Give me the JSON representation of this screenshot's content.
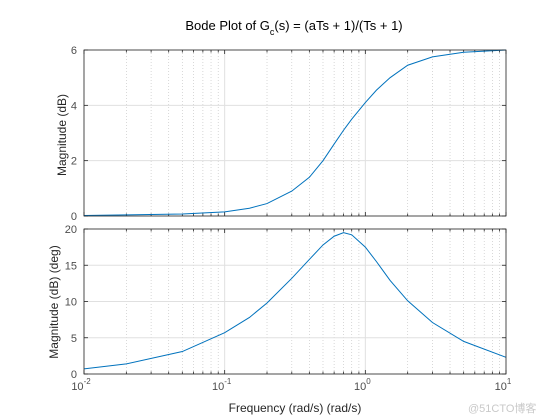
{
  "chart_data": [
    {
      "type": "line",
      "title_main": "Bode Plot of G",
      "title_sub": "c",
      "title_rest": "(s) = (aTs + 1)/(Ts + 1)",
      "xlabel": "",
      "ylabel": "Magnitude (dB)",
      "xscale": "log",
      "xlim": [
        0.01,
        10
      ],
      "ylim": [
        0,
        6
      ],
      "yticks": [
        0,
        2,
        4,
        6
      ],
      "grid": true,
      "minor_grid": true,
      "color": "#0072bd",
      "series": [
        {
          "x": [
            0.01,
            0.02,
            0.05,
            0.1,
            0.15,
            0.2,
            0.3,
            0.4,
            0.5,
            0.6,
            0.7,
            0.8,
            1.0,
            1.2,
            1.5,
            2.0,
            3.0,
            5.0,
            10.0
          ],
          "values": [
            0.02,
            0.04,
            0.07,
            0.15,
            0.28,
            0.45,
            0.9,
            1.4,
            2.0,
            2.6,
            3.1,
            3.5,
            4.1,
            4.55,
            5.0,
            5.45,
            5.75,
            5.92,
            6.0
          ]
        }
      ]
    },
    {
      "type": "line",
      "xlabel": "Frequency (rad/s)  (rad/s)",
      "ylabel": "Magnitude (dB) (deg)",
      "xscale": "log",
      "xlim": [
        0.01,
        10
      ],
      "ylim": [
        0,
        20
      ],
      "yticks": [
        0,
        5,
        10,
        15,
        20
      ],
      "xtick_labels": [
        {
          "base": "10",
          "exp": "-2"
        },
        {
          "base": "10",
          "exp": "-1"
        },
        {
          "base": "10",
          "exp": "0"
        },
        {
          "base": "10",
          "exp": "1"
        }
      ],
      "grid": true,
      "minor_grid": true,
      "color": "#0072bd",
      "series": [
        {
          "x": [
            0.01,
            0.02,
            0.05,
            0.1,
            0.15,
            0.2,
            0.3,
            0.4,
            0.5,
            0.6,
            0.7,
            0.8,
            1.0,
            1.2,
            1.5,
            2.0,
            3.0,
            5.0,
            10.0
          ],
          "values": [
            0.7,
            1.4,
            3.1,
            5.7,
            7.8,
            9.8,
            13.2,
            15.8,
            17.8,
            19.0,
            19.5,
            19.2,
            17.5,
            15.5,
            12.9,
            10.1,
            7.1,
            4.5,
            2.3
          ]
        }
      ]
    }
  ],
  "watermark": "@51CTO博客"
}
